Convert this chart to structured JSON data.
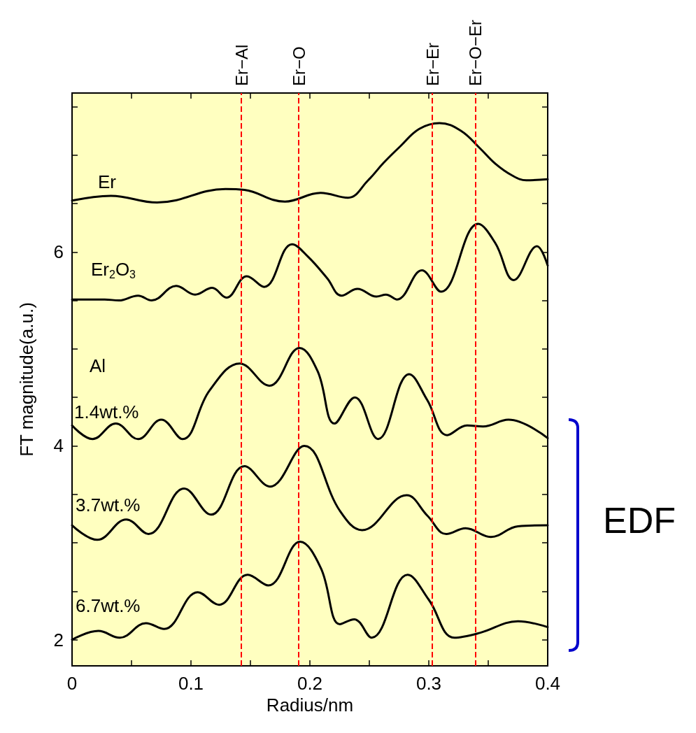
{
  "chart_data": {
    "type": "line",
    "xlabel": "Radius/nm",
    "ylabel": "FT magnitude(a.u.)",
    "xlim": [
      0,
      0.4
    ],
    "ylim": [
      1.73,
      7.64
    ],
    "xticks": [
      0,
      {
        "value": 0.05,
        "label": null
      },
      0.1,
      {
        "value": 0.15,
        "label": null
      },
      0.2,
      {
        "value": 0.25,
        "label": null
      },
      0.3,
      {
        "value": 0.35,
        "label": null
      },
      0.4
    ],
    "yticks": [
      2,
      {
        "value": 2.5,
        "label": null
      },
      {
        "value": 3,
        "label": null
      },
      {
        "value": 3.5,
        "label": null
      },
      4,
      {
        "value": 4.5,
        "label": null
      },
      {
        "value": 5,
        "label": null
      },
      {
        "value": 5.5,
        "label": null
      },
      6,
      {
        "value": 6.5,
        "label": null
      },
      {
        "value": 7,
        "label": null
      },
      {
        "value": 7.5,
        "label": null
      }
    ],
    "grid": false,
    "legend": false,
    "marker": "none",
    "line_style": "solid",
    "series": [
      {
        "name": "Er",
        "color": "#000000",
        "x": [
          0,
          0.0327,
          0.0715,
          0.129,
          0.145,
          0.179,
          0.209,
          0.232,
          0.249,
          0.262,
          0.276,
          0.292,
          0.309,
          0.327,
          0.343,
          0.356,
          0.37,
          0.382,
          0.4
        ],
        "values": [
          6.53,
          6.58,
          6.51,
          6.65,
          6.64,
          6.52,
          6.61,
          6.56,
          6.74,
          6.92,
          7.09,
          7.27,
          7.33,
          7.25,
          7.07,
          6.91,
          6.79,
          6.74,
          6.75
        ]
      },
      {
        "name": "Er$_{2}$O$_{3}$",
        "color": "#000000",
        "x": [
          0,
          0.0274,
          0.0394,
          0.0555,
          0.067,
          0.0875,
          0.1035,
          0.1178,
          0.1298,
          0.147,
          0.1616,
          0.185,
          0.1985,
          0.2145,
          0.2266,
          0.24,
          0.256,
          0.264,
          0.2733,
          0.2942,
          0.3103,
          0.3415,
          0.356,
          0.3715,
          0.391,
          0.4
        ],
        "values": [
          5.51,
          5.51,
          5.5,
          5.55,
          5.5,
          5.65,
          5.56,
          5.63,
          5.53,
          5.75,
          5.64,
          6.08,
          5.95,
          5.73,
          5.55,
          5.62,
          5.54,
          5.56,
          5.51,
          5.81,
          5.59,
          6.29,
          6.09,
          5.71,
          6.06,
          5.86
        ]
      },
      {
        "name": "1.4wt.%",
        "color": "#000000",
        "x": [
          0,
          0.0172,
          0.0368,
          0.0555,
          0.075,
          0.0929,
          0.1156,
          0.141,
          0.1659,
          0.1913,
          0.2065,
          0.2207,
          0.2378,
          0.2574,
          0.2835,
          0.2988,
          0.3154,
          0.3322,
          0.3456,
          0.367,
          0.4
        ],
        "values": [
          4.21,
          4.07,
          4.23,
          4.07,
          4.27,
          4.07,
          4.57,
          4.85,
          4.62,
          5.01,
          4.77,
          4.23,
          4.5,
          4.07,
          4.74,
          4.47,
          4.11,
          4.21,
          4.2,
          4.27,
          4.08
        ]
      },
      {
        "name": "3.7wt.%",
        "color": "#000000",
        "x": [
          0,
          0.0212,
          0.0456,
          0.0643,
          0.0942,
          0.1169,
          0.145,
          0.1664,
          0.1953,
          0.2252,
          0.2439,
          0.2814,
          0.2988,
          0.3148,
          0.3309,
          0.3522,
          0.375,
          0.4
        ],
        "values": [
          3.18,
          3.03,
          3.24,
          3.09,
          3.56,
          3.29,
          3.79,
          3.58,
          4.0,
          3.33,
          3.13,
          3.49,
          3.28,
          3.09,
          3.15,
          3.06,
          3.17,
          3.18
        ]
      },
      {
        "name": "6.7wt.%",
        "color": "#000000",
        "x": [
          0,
          0.0221,
          0.0402,
          0.0621,
          0.0774,
          0.1057,
          0.1236,
          0.1477,
          0.1651,
          0.1918,
          0.2092,
          0.2252,
          0.2373,
          0.252,
          0.2822,
          0.3001,
          0.3215,
          0.3429,
          0.375,
          0.4
        ],
        "values": [
          2.0,
          2.09,
          2.02,
          2.17,
          2.11,
          2.49,
          2.36,
          2.67,
          2.56,
          3.01,
          2.74,
          2.16,
          2.21,
          2.02,
          2.67,
          2.41,
          2.02,
          2.07,
          2.19,
          2.13
        ]
      }
    ],
    "ref_lines": [
      {
        "axis": "x",
        "value": 0.1424,
        "label": "Er−Al",
        "color": "#ff0000",
        "line_style": "dashed"
      },
      {
        "axis": "x",
        "value": 0.1906,
        "label": "Er−O",
        "color": "#ff0000",
        "line_style": "dashed"
      },
      {
        "axis": "x",
        "value": 0.303,
        "label": "Er−Er",
        "color": "#ff0000",
        "line_style": "dashed"
      },
      {
        "axis": "x",
        "value": 0.3394,
        "label": "Er−O−Er",
        "color": "#ff0000",
        "line_style": "dashed"
      }
    ],
    "annotations": [
      "Al",
      "EDF"
    ]
  }
}
